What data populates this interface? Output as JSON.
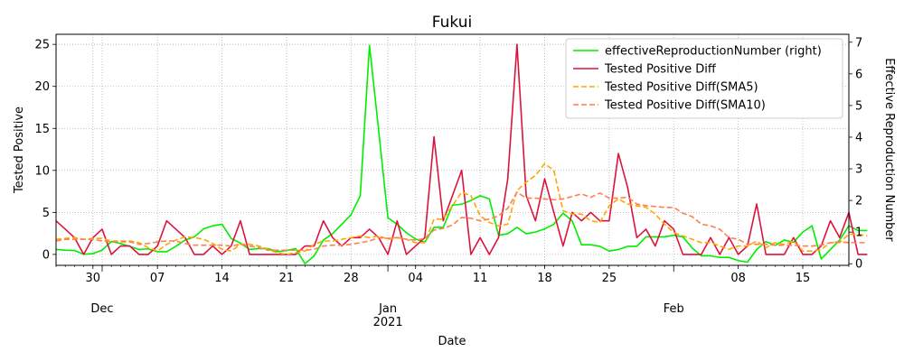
{
  "chart_data": {
    "type": "line",
    "title": "Fukui",
    "xlabel": "Date",
    "ylabel_left": "Tested Positive",
    "ylabel_right": "Effective Reproduction Number",
    "start_date": "2020-11-26",
    "end_date": "2021-02-20",
    "ylim_left": [
      -1.3,
      26.2
    ],
    "ylim_right": [
      -0.05,
      7.25
    ],
    "yticks_left": [
      0,
      5,
      10,
      15,
      20,
      25
    ],
    "yticks_right": [
      0,
      1,
      2,
      3,
      4,
      5,
      6,
      7
    ],
    "xtick_labels": [
      {
        "date": "2020-11-30",
        "label": "30"
      },
      {
        "date": "2020-12-07",
        "label": "07"
      },
      {
        "date": "2020-12-14",
        "label": "14"
      },
      {
        "date": "2020-12-21",
        "label": "21"
      },
      {
        "date": "2020-12-28",
        "label": "28"
      },
      {
        "date": "2021-01-04",
        "label": "04"
      },
      {
        "date": "2021-01-11",
        "label": "11"
      },
      {
        "date": "2021-01-18",
        "label": "18"
      },
      {
        "date": "2021-01-25",
        "label": "25"
      },
      {
        "date": "2021-02-08",
        "label": "08"
      },
      {
        "date": "2021-02-15",
        "label": "15"
      }
    ],
    "major_labels": [
      {
        "date": "2020-12-01",
        "label": "Dec",
        "sub": ""
      },
      {
        "date": "2021-01-01",
        "label": "Jan",
        "sub": "2021"
      },
      {
        "date": "2021-02-01",
        "label": "Feb",
        "sub": ""
      }
    ],
    "grid": true,
    "legend_position": "top-right",
    "series": [
      {
        "name": "effectiveReproductionNumber (right)",
        "axis": "right",
        "color": "#00ee00",
        "style": "solid",
        "values": [
          0.45,
          0.43,
          0.42,
          0.3,
          0.32,
          0.43,
          0.7,
          0.64,
          0.55,
          0.45,
          0.47,
          0.38,
          0.38,
          0.55,
          0.75,
          0.85,
          1.1,
          1.2,
          1.25,
          0.8,
          0.65,
          0.45,
          0.48,
          0.48,
          0.38,
          0.42,
          0.48,
          0.0,
          0.25,
          0.75,
          0.95,
          1.25,
          1.55,
          2.15,
          6.9,
          4.2,
          1.45,
          1.25,
          0.98,
          0.78,
          0.68,
          1.15,
          1.15,
          1.85,
          1.88,
          2.0,
          2.15,
          2.05,
          0.9,
          0.95,
          1.15,
          0.95,
          1.0,
          1.1,
          1.25,
          1.6,
          1.35,
          0.6,
          0.6,
          0.55,
          0.4,
          0.45,
          0.55,
          0.55,
          0.85,
          0.85,
          0.85,
          0.9,
          0.85,
          0.5,
          0.25,
          0.25,
          0.2,
          0.2,
          0.1,
          0.05,
          0.45,
          0.7,
          0.58,
          0.75,
          0.68,
          1.0,
          1.2,
          0.15,
          0.45,
          0.75,
          1.2,
          1.05,
          1.05
        ]
      },
      {
        "name": "Tested Positive Diff",
        "axis": "left",
        "color": "#dc143c",
        "style": "solid",
        "values": [
          4,
          3,
          2,
          0,
          2,
          3,
          0,
          1,
          1,
          0,
          0,
          1,
          4,
          3,
          2,
          0,
          0,
          1,
          0,
          1,
          4,
          0,
          0,
          0,
          0,
          0,
          0,
          1,
          1,
          4,
          2,
          1,
          2,
          2,
          3,
          2,
          0,
          4,
          0,
          1,
          2,
          14,
          4,
          7,
          10,
          0,
          2,
          0,
          2,
          9,
          25,
          7,
          4,
          9,
          5,
          1,
          5,
          4,
          5,
          4,
          4,
          12,
          8,
          2,
          3,
          1,
          4,
          3,
          0,
          0,
          0,
          2,
          0,
          2,
          0,
          1,
          6,
          0,
          0,
          0,
          2,
          0,
          0,
          1,
          4,
          2,
          5,
          0,
          0
        ]
      },
      {
        "name": "Tested Positive Diff(SMA5)",
        "axis": "left",
        "color": "#ffa500",
        "style": "dashed",
        "values": [
          1.8,
          1.9,
          2.0,
          1.8,
          1.9,
          1.9,
          1.6,
          1.6,
          1.6,
          1.4,
          0.8,
          0.4,
          1.2,
          1.7,
          2.1,
          2.0,
          1.8,
          1.3,
          0.6,
          0.4,
          1.2,
          1.2,
          1.0,
          0.6,
          0.2,
          0.0,
          0.2,
          0.4,
          1.2,
          1.6,
          1.6,
          1.8,
          2.0,
          2.2,
          2.0,
          2.2,
          1.8,
          2.0,
          1.8,
          1.4,
          1.4,
          4.2,
          4.2,
          5.8,
          7.4,
          7.0,
          4.6,
          3.8,
          3.4,
          3.6,
          7.6,
          8.6,
          9.4,
          10.8,
          10.0,
          5.2,
          4.8,
          4.8,
          4.0,
          3.8,
          5.8,
          6.6,
          6.0,
          5.8,
          5.6,
          4.8,
          3.6,
          2.6,
          2.2,
          1.8,
          1.4,
          1.4,
          1.0,
          0.6,
          1.0,
          1.0,
          1.6,
          0.8,
          1.4,
          1.2,
          1.6,
          0.4,
          0.4,
          0.6,
          1.4,
          1.4,
          2.4,
          2.4,
          2.2
        ]
      },
      {
        "name": "Tested Positive Diff(SMA10)",
        "axis": "left",
        "color": "#ff7f50",
        "style": "dashed",
        "values": [
          1.6,
          1.8,
          1.8,
          1.8,
          1.8,
          1.6,
          1.5,
          1.5,
          1.5,
          1.2,
          1.3,
          1.5,
          1.6,
          1.6,
          1.3,
          1.1,
          1.1,
          1.1,
          1.1,
          1.0,
          1.2,
          1.0,
          0.8,
          0.5,
          0.5,
          0.5,
          0.5,
          0.5,
          0.6,
          1.0,
          1.1,
          1.1,
          1.2,
          1.4,
          1.6,
          2.0,
          1.9,
          2.0,
          1.8,
          1.7,
          1.9,
          2.9,
          3.1,
          3.5,
          4.4,
          4.3,
          4.0,
          4.2,
          4.6,
          5.5,
          7.4,
          6.7,
          6.7,
          6.6,
          6.5,
          6.6,
          6.9,
          7.2,
          6.8,
          7.3,
          6.7,
          6.7,
          6.8,
          6.0,
          5.8,
          5.7,
          5.6,
          5.6,
          4.9,
          4.5,
          3.6,
          3.4,
          3.0,
          2.0,
          1.8,
          1.2,
          1.2,
          1.2,
          1.1,
          1.1,
          1.1,
          1.0,
          1.0,
          1.1,
          1.4,
          1.5,
          1.4,
          1.4,
          1.4
        ]
      }
    ]
  }
}
